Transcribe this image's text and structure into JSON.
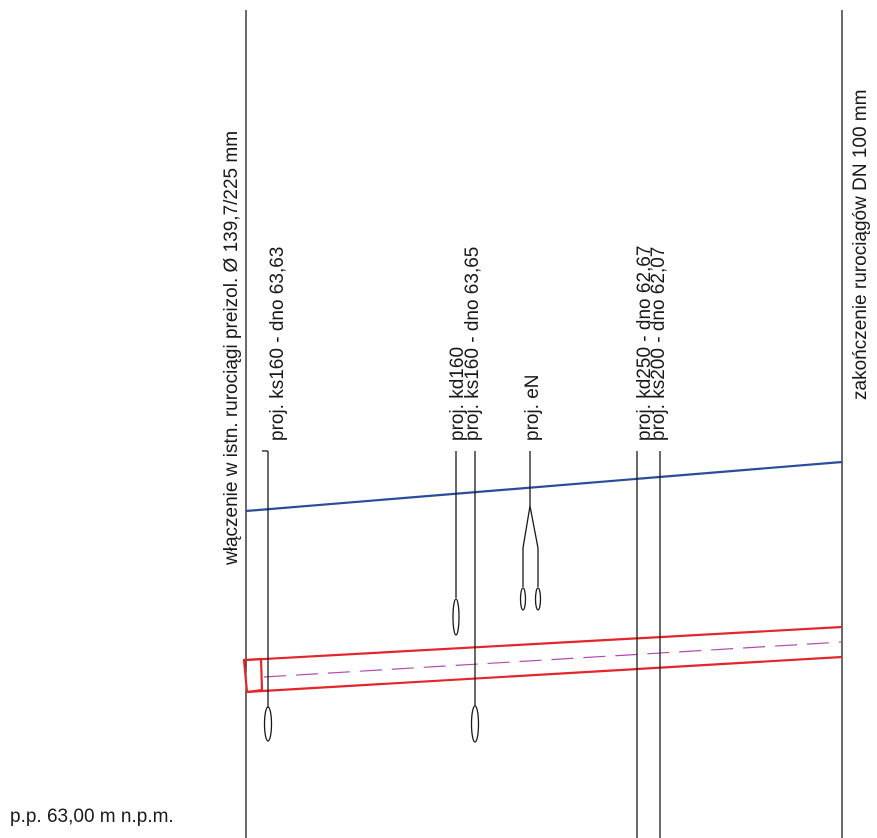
{
  "labels": {
    "left_connection": "włączenie w istn. rurociągi preizol. Ø 139,7/225 mm",
    "right_end": "zakończenie rurociągów DN 100 mm",
    "ks160_a": "proj. ks160 - dno 63,63",
    "kd160": "proj. kd160",
    "ks160_b": "proj. ks160 - dno 63,65",
    "en": "proj. eN",
    "kd250": "proj. kd250 - dno 62,67",
    "ks200": "proj. ks200 - dno 62,07",
    "datum": "p.p. 63,00 m n.p.m."
  },
  "colors": {
    "line": "#1a1a1a",
    "heating_pipe": "#e3262b",
    "pipe_axis": "#b04ab0",
    "terrain": "#2b4d99"
  }
}
